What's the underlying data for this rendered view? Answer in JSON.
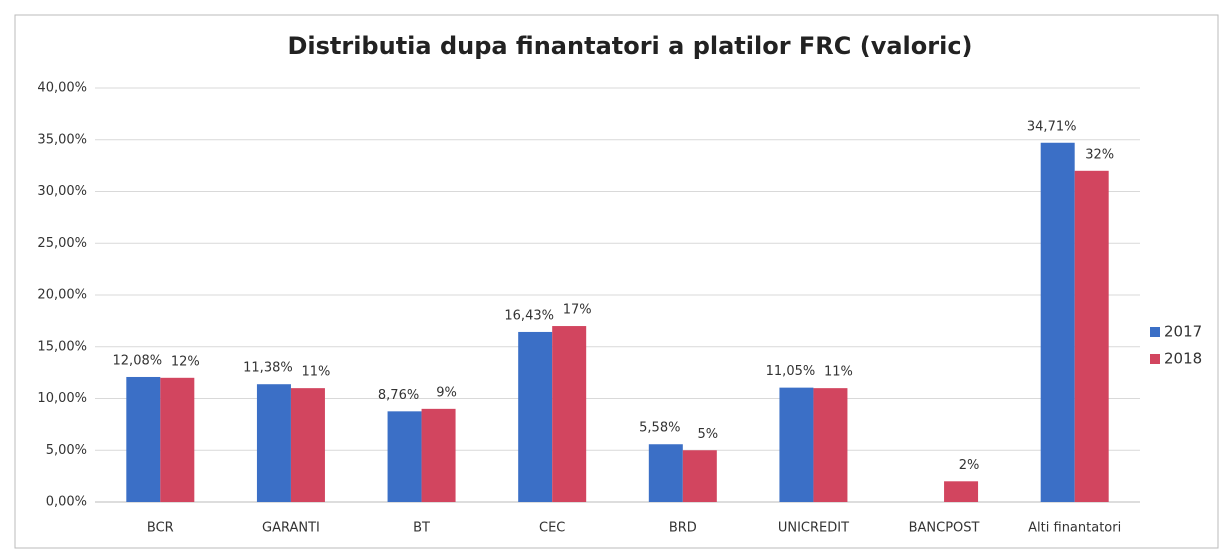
{
  "chart_data": {
    "type": "bar",
    "title": "Distributia dupa finantatori a platilor FRC (valoric)",
    "categories": [
      "BCR",
      "GARANTI",
      "BT",
      "CEC",
      "BRD",
      "UNICREDIT",
      "BANCPOST",
      "Alti finantatori"
    ],
    "series": [
      {
        "name": "2017",
        "color": "#3b6fc6",
        "values": [
          12.08,
          11.38,
          8.76,
          16.43,
          5.58,
          11.05,
          null,
          34.71
        ],
        "value_labels": [
          "12,08%",
          "11,38%",
          "8,76%",
          "16,43%",
          "5,58%",
          "11,05%",
          null,
          "34,71%"
        ]
      },
      {
        "name": "2018",
        "color": "#d2455f",
        "values": [
          12,
          11,
          9,
          17,
          5,
          11,
          2,
          32
        ],
        "value_labels": [
          "12%",
          "11%",
          "9%",
          "17%",
          "5%",
          "11%",
          "2%",
          "32%"
        ]
      }
    ],
    "ylim": [
      0,
      40
    ],
    "yticks": [
      {
        "value": 0,
        "label": "0,00%"
      },
      {
        "value": 5,
        "label": "5,00%"
      },
      {
        "value": 10,
        "label": "10,00%"
      },
      {
        "value": 15,
        "label": "15,00%"
      },
      {
        "value": 20,
        "label": "20,00%"
      },
      {
        "value": 25,
        "label": "25,00%"
      },
      {
        "value": 30,
        "label": "30,00%"
      },
      {
        "value": 35,
        "label": "35,00%"
      },
      {
        "value": 40,
        "label": "40,00%"
      }
    ],
    "grid": true,
    "legend": "right"
  }
}
